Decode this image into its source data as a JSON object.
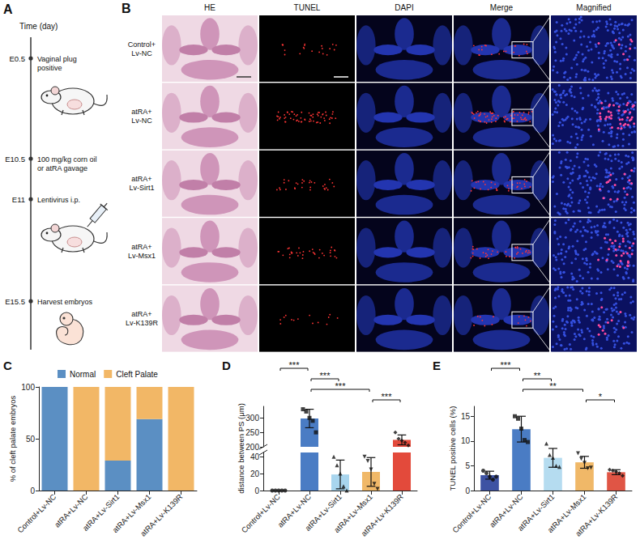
{
  "timeline": {
    "panel": "A",
    "title": "Time (day)",
    "events": [
      {
        "day": "E0.5",
        "text": "Vaginal plug positive"
      },
      {
        "day": "E10.5",
        "text": "100 mg/kg corn oil or atRA gavage"
      },
      {
        "day": "E11",
        "text": "Lentivirus i.p."
      },
      {
        "day": "E15.5",
        "text": "Harvest embryos"
      }
    ]
  },
  "micrographs": {
    "panel": "B",
    "columns": [
      "HE",
      "TUNEL",
      "DAPI",
      "Merge",
      "Magnified"
    ],
    "rows": [
      "Control+ Lv-NC",
      "atRA+ Lv-NC",
      "atRA+ Lv-Sirt1",
      "atRA+ Lv-Msx1",
      "atRA+ Lv-K139R"
    ]
  },
  "chart_data": [
    {
      "panel": "C",
      "type": "bar",
      "stacked": true,
      "legend": "top",
      "grid": false,
      "categories": [
        "Control+Lv-NC",
        "atRA+Lv-NC",
        "atRA+Lv-Sirt1",
        "atRA+Lv-Msx1",
        "atRA+Lv-K139R"
      ],
      "series": [
        {
          "name": "Normal",
          "color": "#5b8fc3",
          "values": [
            100,
            0,
            29,
            69,
            0
          ]
        },
        {
          "name": "Cleft Palate",
          "color": "#f2b766",
          "values": [
            0,
            100,
            71,
            31,
            100
          ]
        }
      ],
      "y_label": "% of cleft palate embryos",
      "ylim": [
        0,
        100
      ],
      "yticks": [
        0,
        50,
        100
      ]
    },
    {
      "panel": "D",
      "type": "bar",
      "grid": false,
      "categories": [
        "Control+Lv-NC",
        "atRA+Lv-NC",
        "atRA+Lv-Sirt1",
        "atRA+Lv-Msx1",
        "atRA+Lv-K139R"
      ],
      "values": [
        0,
        298,
        19,
        22,
        224
      ],
      "errors": [
        0,
        32,
        17,
        17,
        17
      ],
      "points": [
        [
          0,
          0,
          0,
          0,
          0
        ],
        [
          330,
          322,
          300,
          290,
          250
        ],
        [
          40,
          30,
          20,
          5,
          0
        ],
        [
          40,
          35,
          25,
          8,
          2
        ],
        [
          250,
          228,
          222,
          215,
          205
        ]
      ],
      "colors": [
        "#2e3f8f",
        "#4a7cc4",
        "#a8d5ee",
        "#f0b868",
        "#e34a3b"
      ],
      "marker": [
        "circle",
        "square",
        "triangle",
        "triangle-down",
        "diamond"
      ],
      "y_label": "distance between PS (μm)",
      "ylim": [
        0,
        340
      ],
      "y_break": [
        45,
        200
      ],
      "yticks": [
        0,
        20,
        40,
        200,
        250,
        300
      ],
      "annotations": [
        {
          "from": 0,
          "to": 1,
          "text": "***"
        },
        {
          "from": 1,
          "to": 2,
          "text": "***"
        },
        {
          "from": 1,
          "to": 3,
          "text": "***"
        },
        {
          "from": 3,
          "to": 4,
          "text": "***"
        }
      ]
    },
    {
      "panel": "E",
      "type": "bar",
      "grid": false,
      "categories": [
        "Control+Lv-NC",
        "atRA+Lv-NC",
        "atRA+Lv-Sirt1",
        "atRA+Lv-Msx1",
        "atRA+Lv-K139R"
      ],
      "values": [
        3.1,
        12.4,
        6.6,
        5.7,
        3.7
      ],
      "errors": [
        0.8,
        2.6,
        1.9,
        1.2,
        0.5
      ],
      "points": [
        [
          4.0,
          3.5,
          2.8,
          2.2,
          2.8
        ],
        [
          15.0,
          14.5,
          12.5,
          10.2,
          9.8
        ],
        [
          9.5,
          7.2,
          6.6,
          5.0,
          4.8
        ],
        [
          7.5,
          6.4,
          5.6,
          4.5,
          4.6
        ],
        [
          4.2,
          4.0,
          3.8,
          3.5,
          3.0
        ]
      ],
      "colors": [
        "#3d52a3",
        "#4a7cc4",
        "#b5dcf0",
        "#f0b868",
        "#e05545"
      ],
      "marker": [
        "circle",
        "square",
        "triangle",
        "triangle-down",
        "diamond"
      ],
      "y_label": "TUNEL positive cells (%)",
      "ylim": [
        0,
        17
      ],
      "yticks": [
        0,
        5,
        10,
        15
      ],
      "annotations": [
        {
          "from": 0,
          "to": 1,
          "text": "***"
        },
        {
          "from": 1,
          "to": 2,
          "text": "**"
        },
        {
          "from": 1,
          "to": 3,
          "text": "**"
        },
        {
          "from": 3,
          "to": 4,
          "text": "*"
        }
      ]
    }
  ]
}
